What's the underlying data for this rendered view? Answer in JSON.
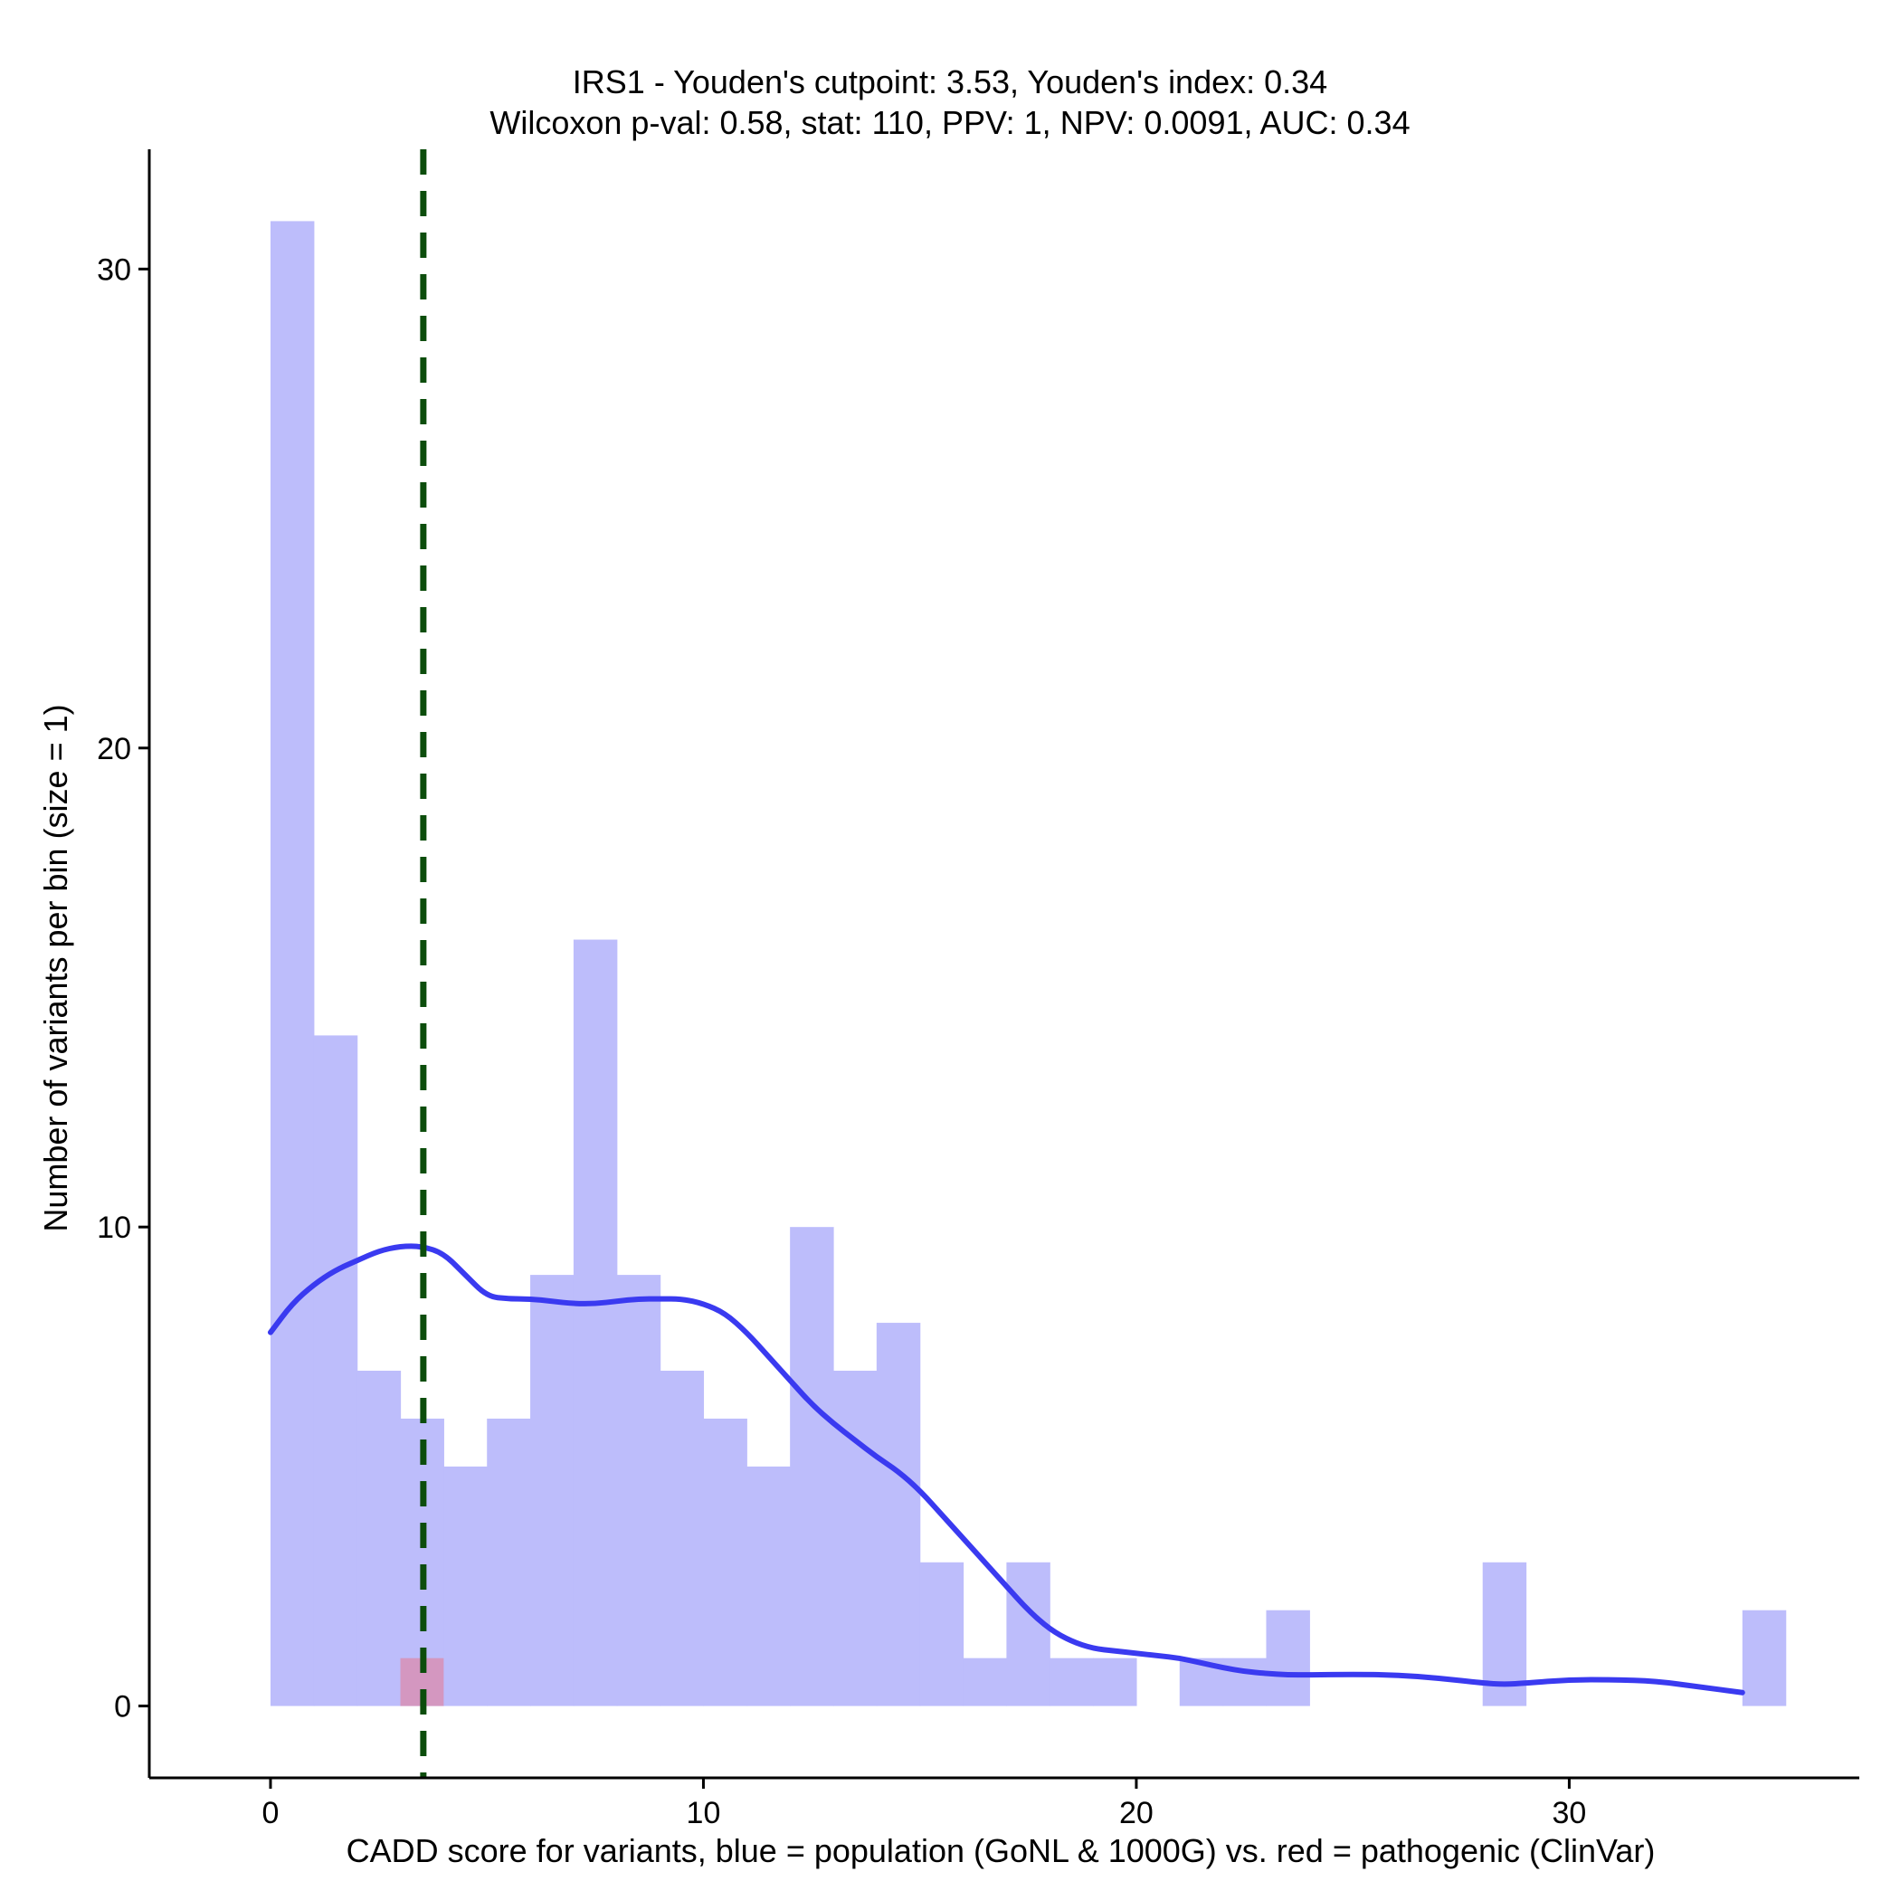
{
  "chart_data": {
    "type": "bar",
    "title_line1": "IRS1 - Youden's cutpoint: 3.53, Youden's index: 0.34",
    "title_line2": "Wilcoxon p-val: 0.58, stat: 110, PPV: 1, NPV: 0.0091, AUC: 0.34",
    "xlabel": "CADD score for variants, blue = population (GoNL & 1000G) vs. red = pathogenic (ClinVar)",
    "ylabel": "Number of variants per bin (size = 1)",
    "xlim": [
      -2.8,
      36.7
    ],
    "ylim": [
      -1.5,
      32.5
    ],
    "xticks": [
      0,
      10,
      20,
      30
    ],
    "yticks": [
      0,
      10,
      20,
      30
    ],
    "bin_width": 1,
    "grid": false,
    "colors": {
      "population": "#bdbdfb",
      "pathogenic": "#d497c0",
      "density": "#3a3af0",
      "cutpoint": "#0c4d0c"
    },
    "population_bins": [
      {
        "x0": 0,
        "count": 31
      },
      {
        "x0": 1,
        "count": 14
      },
      {
        "x0": 2,
        "count": 7
      },
      {
        "x0": 3,
        "count": 6
      },
      {
        "x0": 4,
        "count": 5
      },
      {
        "x0": 5,
        "count": 6
      },
      {
        "x0": 6,
        "count": 9
      },
      {
        "x0": 7,
        "count": 16
      },
      {
        "x0": 8,
        "count": 9
      },
      {
        "x0": 9,
        "count": 7
      },
      {
        "x0": 10,
        "count": 6
      },
      {
        "x0": 11,
        "count": 5
      },
      {
        "x0": 12,
        "count": 10
      },
      {
        "x0": 13,
        "count": 7
      },
      {
        "x0": 14,
        "count": 8
      },
      {
        "x0": 15,
        "count": 3
      },
      {
        "x0": 16,
        "count": 1
      },
      {
        "x0": 17,
        "count": 3
      },
      {
        "x0": 18,
        "count": 1
      },
      {
        "x0": 19,
        "count": 1
      },
      {
        "x0": 20,
        "count": 0
      },
      {
        "x0": 21,
        "count": 1
      },
      {
        "x0": 22,
        "count": 1
      },
      {
        "x0": 23,
        "count": 2
      },
      {
        "x0": 24,
        "count": 0
      },
      {
        "x0": 25,
        "count": 0
      },
      {
        "x0": 26,
        "count": 0
      },
      {
        "x0": 27,
        "count": 0
      },
      {
        "x0": 28,
        "count": 3
      },
      {
        "x0": 29,
        "count": 0
      },
      {
        "x0": 30,
        "count": 0
      },
      {
        "x0": 31,
        "count": 0
      },
      {
        "x0": 32,
        "count": 0
      },
      {
        "x0": 33,
        "count": 0
      },
      {
        "x0": 34,
        "count": 2
      }
    ],
    "pathogenic_bins": [
      {
        "x0": 3,
        "count": 1
      }
    ],
    "density_curve": [
      [
        0,
        7.8
      ],
      [
        0.5,
        8.4
      ],
      [
        1,
        8.8
      ],
      [
        1.5,
        9.1
      ],
      [
        2,
        9.3
      ],
      [
        2.5,
        9.5
      ],
      [
        3,
        9.6
      ],
      [
        3.5,
        9.6
      ],
      [
        4,
        9.45
      ],
      [
        4.5,
        9.0
      ],
      [
        5,
        8.55
      ],
      [
        5.5,
        8.5
      ],
      [
        6,
        8.5
      ],
      [
        6.5,
        8.45
      ],
      [
        7,
        8.4
      ],
      [
        7.5,
        8.4
      ],
      [
        8,
        8.45
      ],
      [
        8.5,
        8.5
      ],
      [
        9,
        8.5
      ],
      [
        9.5,
        8.5
      ],
      [
        10,
        8.4
      ],
      [
        10.5,
        8.2
      ],
      [
        11,
        7.8
      ],
      [
        11.5,
        7.3
      ],
      [
        12,
        6.8
      ],
      [
        12.5,
        6.3
      ],
      [
        13,
        5.9
      ],
      [
        13.5,
        5.55
      ],
      [
        14,
        5.2
      ],
      [
        14.5,
        4.9
      ],
      [
        15,
        4.5
      ],
      [
        15.5,
        4.0
      ],
      [
        16,
        3.5
      ],
      [
        16.5,
        3.0
      ],
      [
        17,
        2.5
      ],
      [
        17.5,
        2.0
      ],
      [
        18,
        1.6
      ],
      [
        18.5,
        1.35
      ],
      [
        19,
        1.2
      ],
      [
        19.5,
        1.15
      ],
      [
        20,
        1.1
      ],
      [
        20.5,
        1.05
      ],
      [
        21,
        1.0
      ],
      [
        21.5,
        0.9
      ],
      [
        22,
        0.8
      ],
      [
        22.5,
        0.72
      ],
      [
        23,
        0.68
      ],
      [
        23.5,
        0.65
      ],
      [
        24,
        0.65
      ],
      [
        25,
        0.66
      ],
      [
        26,
        0.65
      ],
      [
        27,
        0.58
      ],
      [
        28,
        0.48
      ],
      [
        28.5,
        0.45
      ],
      [
        29,
        0.48
      ],
      [
        30,
        0.55
      ],
      [
        31,
        0.55
      ],
      [
        32,
        0.52
      ],
      [
        33,
        0.4
      ],
      [
        34,
        0.28
      ]
    ],
    "cutpoint": 3.53
  }
}
